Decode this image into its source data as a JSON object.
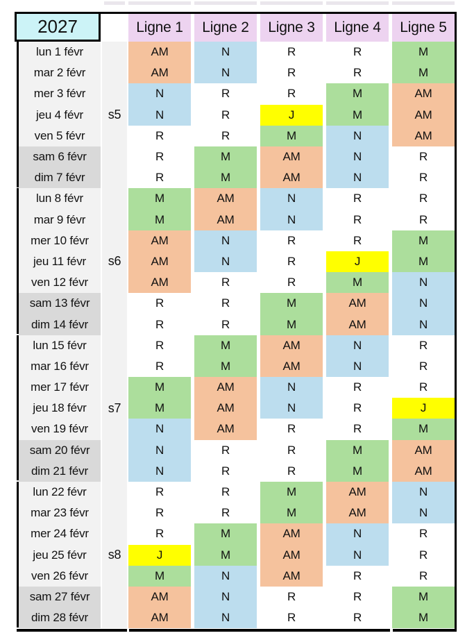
{
  "title_year": "2027",
  "column_headers": [
    "Ligne 1",
    "Ligne 2",
    "Ligne 3",
    "Ligne 4",
    "Ligne 5"
  ],
  "shift_codes": [
    "AM",
    "N",
    "M",
    "J",
    "R"
  ],
  "shift_colors": {
    "AM": "#F5C29D",
    "N": "#BCDDEE",
    "M": "#ACDE9C",
    "J": "#FFFF00",
    "R": "transparent"
  },
  "colors": {
    "year_bg": "#CCF3F7",
    "header_bg": "#EDD3F0",
    "weekday_bg": "#F2F2F2",
    "weekend_bg": "#D9D9D9",
    "week_col_bg": "#F2F2F2",
    "border": "#000000",
    "fragment": "#D9D1DC"
  },
  "weeks": [
    {
      "label": "s5",
      "days": [
        {
          "date": "lun 1 févr",
          "weekend": false,
          "shifts": [
            "AM",
            "N",
            "R",
            "R",
            "M"
          ]
        },
        {
          "date": "mar 2 févr",
          "weekend": false,
          "shifts": [
            "AM",
            "N",
            "R",
            "R",
            "M"
          ]
        },
        {
          "date": "mer 3 févr",
          "weekend": false,
          "shifts": [
            "N",
            "R",
            "R",
            "M",
            "AM"
          ]
        },
        {
          "date": "jeu 4 févr",
          "weekend": false,
          "shifts": [
            "N",
            "R",
            "J",
            "M",
            "AM"
          ]
        },
        {
          "date": "ven 5 févr",
          "weekend": false,
          "shifts": [
            "R",
            "R",
            "M",
            "N",
            "AM"
          ]
        },
        {
          "date": "sam 6 févr",
          "weekend": true,
          "shifts": [
            "R",
            "M",
            "AM",
            "N",
            "R"
          ]
        },
        {
          "date": "dim 7 févr",
          "weekend": true,
          "shifts": [
            "R",
            "M",
            "AM",
            "N",
            "R"
          ]
        }
      ]
    },
    {
      "label": "s6",
      "days": [
        {
          "date": "lun 8 févr",
          "weekend": false,
          "shifts": [
            "M",
            "AM",
            "N",
            "R",
            "R"
          ]
        },
        {
          "date": "mar 9 févr",
          "weekend": false,
          "shifts": [
            "M",
            "AM",
            "N",
            "R",
            "R"
          ]
        },
        {
          "date": "mer 10 févr",
          "weekend": false,
          "shifts": [
            "AM",
            "N",
            "R",
            "R",
            "M"
          ]
        },
        {
          "date": "jeu 11 févr",
          "weekend": false,
          "shifts": [
            "AM",
            "N",
            "R",
            "J",
            "M"
          ]
        },
        {
          "date": "ven 12 févr",
          "weekend": false,
          "shifts": [
            "AM",
            "R",
            "R",
            "M",
            "N"
          ]
        },
        {
          "date": "sam 13 févr",
          "weekend": true,
          "shifts": [
            "R",
            "R",
            "M",
            "AM",
            "N"
          ]
        },
        {
          "date": "dim 14 févr",
          "weekend": true,
          "shifts": [
            "R",
            "R",
            "M",
            "AM",
            "N"
          ]
        }
      ]
    },
    {
      "label": "s7",
      "days": [
        {
          "date": "lun 15 févr",
          "weekend": false,
          "shifts": [
            "R",
            "M",
            "AM",
            "N",
            "R"
          ]
        },
        {
          "date": "mar 16 févr",
          "weekend": false,
          "shifts": [
            "R",
            "M",
            "AM",
            "N",
            "R"
          ]
        },
        {
          "date": "mer 17 févr",
          "weekend": false,
          "shifts": [
            "M",
            "AM",
            "N",
            "R",
            "R"
          ]
        },
        {
          "date": "jeu 18 févr",
          "weekend": false,
          "shifts": [
            "M",
            "AM",
            "N",
            "R",
            "J"
          ]
        },
        {
          "date": "ven 19 févr",
          "weekend": false,
          "shifts": [
            "N",
            "AM",
            "R",
            "R",
            "M"
          ]
        },
        {
          "date": "sam 20 févr",
          "weekend": true,
          "shifts": [
            "N",
            "R",
            "R",
            "M",
            "AM"
          ]
        },
        {
          "date": "dim 21 févr",
          "weekend": true,
          "shifts": [
            "N",
            "R",
            "R",
            "M",
            "AM"
          ]
        }
      ]
    },
    {
      "label": "s8",
      "days": [
        {
          "date": "lun 22 févr",
          "weekend": false,
          "shifts": [
            "R",
            "R",
            "M",
            "AM",
            "N"
          ]
        },
        {
          "date": "mar 23 févr",
          "weekend": false,
          "shifts": [
            "R",
            "R",
            "M",
            "AM",
            "N"
          ]
        },
        {
          "date": "mer 24 févr",
          "weekend": false,
          "shifts": [
            "R",
            "M",
            "AM",
            "N",
            "R"
          ]
        },
        {
          "date": "jeu 25 févr",
          "weekend": false,
          "shifts": [
            "J",
            "M",
            "AM",
            "N",
            "R"
          ]
        },
        {
          "date": "ven 26 févr",
          "weekend": false,
          "shifts": [
            "M",
            "N",
            "AM",
            "R",
            "R"
          ]
        },
        {
          "date": "sam 27 févr",
          "weekend": true,
          "shifts": [
            "AM",
            "N",
            "R",
            "R",
            "M"
          ]
        },
        {
          "date": "dim 28 févr",
          "weekend": true,
          "shifts": [
            "AM",
            "N",
            "R",
            "R",
            "M"
          ]
        }
      ]
    }
  ]
}
